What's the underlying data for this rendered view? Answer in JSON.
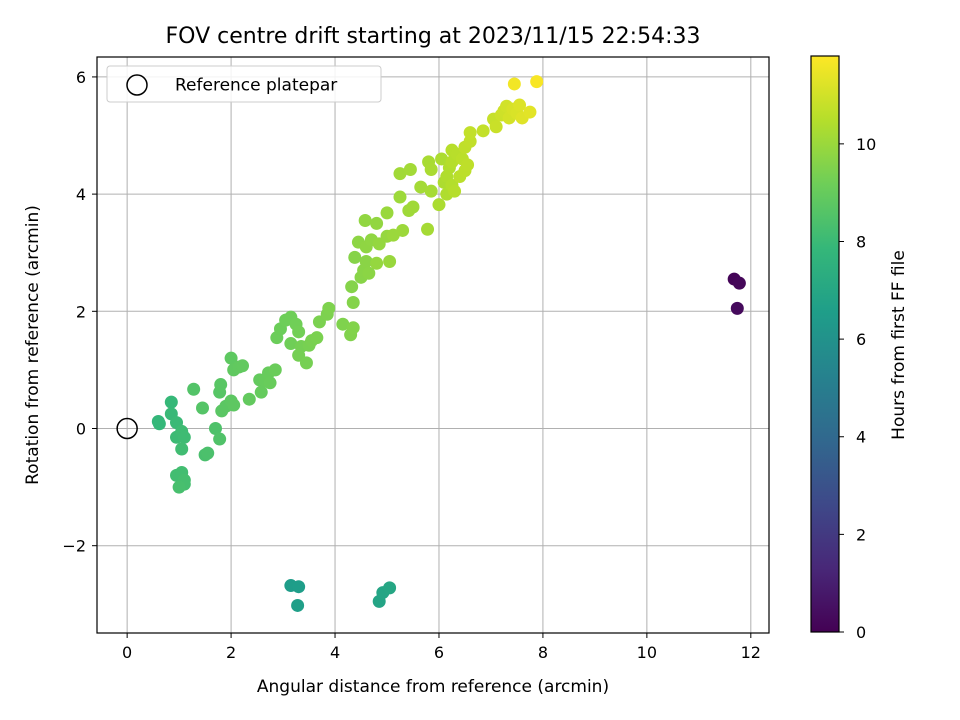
{
  "chart_data": {
    "type": "scatter",
    "title": "FOV centre drift starting at 2023/11/15 22:54:33",
    "xlabel": "Angular distance from reference (arcmin)",
    "ylabel": "Rotation from reference (arcmin)",
    "xlim": [
      -0.58,
      12.35
    ],
    "ylim": [
      -3.49,
      6.34
    ],
    "xticks": [
      0,
      2,
      4,
      6,
      8,
      10,
      12
    ],
    "yticks": [
      -2,
      0,
      2,
      4,
      6
    ],
    "ytick_labels": [
      "−2",
      "0",
      "2",
      "4",
      "6"
    ],
    "grid": true,
    "legend": {
      "position": "top-left",
      "label": "Reference platepar"
    },
    "reference_point": {
      "x": 0,
      "y": 0
    },
    "colorbar": {
      "label": "Hours from first FF file",
      "min": 0,
      "max": 11.8,
      "ticks": [
        0,
        2,
        4,
        6,
        8,
        10
      ],
      "colormap": "viridis",
      "stops": [
        "#440154",
        "#482878",
        "#3e4989",
        "#31688e",
        "#26828e",
        "#1f9e89",
        "#35b779",
        "#6ece58",
        "#b5de2b",
        "#fde725"
      ]
    },
    "points": [
      {
        "x": 11.68,
        "y": 2.55,
        "c": 0.1
      },
      {
        "x": 11.78,
        "y": 2.48,
        "c": 0.2
      },
      {
        "x": 11.74,
        "y": 2.05,
        "c": 0.3
      },
      {
        "x": 3.15,
        "y": -2.68,
        "c": 6.5
      },
      {
        "x": 3.3,
        "y": -2.7,
        "c": 6.55
      },
      {
        "x": 3.28,
        "y": -3.02,
        "c": 6.6
      },
      {
        "x": 4.85,
        "y": -2.95,
        "c": 6.85
      },
      {
        "x": 4.92,
        "y": -2.8,
        "c": 6.9
      },
      {
        "x": 5.05,
        "y": -2.72,
        "c": 6.95
      },
      {
        "x": 0.6,
        "y": 0.12,
        "c": 7.8
      },
      {
        "x": 0.62,
        "y": 0.08,
        "c": 7.85
      },
      {
        "x": 0.85,
        "y": 0.45,
        "c": 7.9
      },
      {
        "x": 0.85,
        "y": 0.25,
        "c": 7.95
      },
      {
        "x": 0.95,
        "y": 0.1,
        "c": 8.0
      },
      {
        "x": 0.95,
        "y": -0.15,
        "c": 8.05
      },
      {
        "x": 1.05,
        "y": -0.05,
        "c": 8.1
      },
      {
        "x": 1.1,
        "y": -0.15,
        "c": 8.1
      },
      {
        "x": 1.05,
        "y": -0.35,
        "c": 8.15
      },
      {
        "x": 0.95,
        "y": -0.8,
        "c": 8.2
      },
      {
        "x": 1.05,
        "y": -0.75,
        "c": 8.2
      },
      {
        "x": 1.1,
        "y": -0.88,
        "c": 8.25
      },
      {
        "x": 1.1,
        "y": -0.95,
        "c": 8.25
      },
      {
        "x": 1.0,
        "y": -1.0,
        "c": 8.3
      },
      {
        "x": 1.5,
        "y": -0.45,
        "c": 8.35
      },
      {
        "x": 1.55,
        "y": -0.42,
        "c": 8.4
      },
      {
        "x": 1.7,
        "y": 0.0,
        "c": 8.45
      },
      {
        "x": 1.78,
        "y": -0.18,
        "c": 8.5
      },
      {
        "x": 1.28,
        "y": 0.67,
        "c": 8.55
      },
      {
        "x": 1.45,
        "y": 0.35,
        "c": 8.6
      },
      {
        "x": 1.78,
        "y": 0.62,
        "c": 8.65
      },
      {
        "x": 1.8,
        "y": 0.75,
        "c": 8.7
      },
      {
        "x": 1.82,
        "y": 0.3,
        "c": 8.72
      },
      {
        "x": 1.9,
        "y": 0.38,
        "c": 8.75
      },
      {
        "x": 2.0,
        "y": 0.47,
        "c": 8.78
      },
      {
        "x": 2.05,
        "y": 0.4,
        "c": 8.8
      },
      {
        "x": 2.0,
        "y": 1.2,
        "c": 8.82
      },
      {
        "x": 2.05,
        "y": 1.0,
        "c": 8.85
      },
      {
        "x": 2.15,
        "y": 1.05,
        "c": 8.88
      },
      {
        "x": 2.22,
        "y": 1.07,
        "c": 8.9
      },
      {
        "x": 2.35,
        "y": 0.5,
        "c": 8.92
      },
      {
        "x": 2.55,
        "y": 0.83,
        "c": 8.95
      },
      {
        "x": 2.58,
        "y": 0.62,
        "c": 8.98
      },
      {
        "x": 2.65,
        "y": 0.82,
        "c": 9.0
      },
      {
        "x": 2.72,
        "y": 0.95,
        "c": 9.02
      },
      {
        "x": 2.75,
        "y": 0.78,
        "c": 9.05
      },
      {
        "x": 2.85,
        "y": 1.0,
        "c": 9.08
      },
      {
        "x": 2.88,
        "y": 1.55,
        "c": 9.1
      },
      {
        "x": 2.95,
        "y": 1.7,
        "c": 9.12
      },
      {
        "x": 3.05,
        "y": 1.85,
        "c": 9.15
      },
      {
        "x": 3.15,
        "y": 1.9,
        "c": 9.18
      },
      {
        "x": 3.15,
        "y": 1.45,
        "c": 9.2
      },
      {
        "x": 3.25,
        "y": 1.78,
        "c": 9.22
      },
      {
        "x": 3.3,
        "y": 1.65,
        "c": 9.25
      },
      {
        "x": 3.35,
        "y": 1.4,
        "c": 9.28
      },
      {
        "x": 3.3,
        "y": 1.25,
        "c": 9.3
      },
      {
        "x": 3.45,
        "y": 1.12,
        "c": 9.32
      },
      {
        "x": 3.5,
        "y": 1.42,
        "c": 9.35
      },
      {
        "x": 3.55,
        "y": 1.5,
        "c": 9.38
      },
      {
        "x": 3.65,
        "y": 1.55,
        "c": 9.4
      },
      {
        "x": 3.7,
        "y": 1.82,
        "c": 9.42
      },
      {
        "x": 3.85,
        "y": 1.95,
        "c": 9.45
      },
      {
        "x": 3.88,
        "y": 2.05,
        "c": 9.48
      },
      {
        "x": 4.15,
        "y": 1.78,
        "c": 9.5
      },
      {
        "x": 4.3,
        "y": 1.6,
        "c": 9.52
      },
      {
        "x": 4.35,
        "y": 1.72,
        "c": 9.55
      },
      {
        "x": 4.35,
        "y": 2.15,
        "c": 9.58
      },
      {
        "x": 4.32,
        "y": 2.42,
        "c": 9.6
      },
      {
        "x": 4.38,
        "y": 2.92,
        "c": 9.62
      },
      {
        "x": 4.5,
        "y": 2.58,
        "c": 9.65
      },
      {
        "x": 4.55,
        "y": 2.7,
        "c": 9.68
      },
      {
        "x": 4.6,
        "y": 2.85,
        "c": 9.7
      },
      {
        "x": 4.65,
        "y": 2.65,
        "c": 9.72
      },
      {
        "x": 4.45,
        "y": 3.18,
        "c": 9.75
      },
      {
        "x": 4.6,
        "y": 3.1,
        "c": 9.78
      },
      {
        "x": 4.7,
        "y": 3.22,
        "c": 9.8
      },
      {
        "x": 4.58,
        "y": 3.55,
        "c": 9.82
      },
      {
        "x": 4.8,
        "y": 3.5,
        "c": 9.85
      },
      {
        "x": 4.85,
        "y": 3.15,
        "c": 9.88
      },
      {
        "x": 4.8,
        "y": 2.82,
        "c": 9.9
      },
      {
        "x": 5.0,
        "y": 3.28,
        "c": 9.92
      },
      {
        "x": 5.05,
        "y": 2.85,
        "c": 9.95
      },
      {
        "x": 5.0,
        "y": 3.68,
        "c": 9.98
      },
      {
        "x": 5.12,
        "y": 3.3,
        "c": 10.0
      },
      {
        "x": 5.3,
        "y": 3.38,
        "c": 10.02
      },
      {
        "x": 5.25,
        "y": 3.95,
        "c": 10.05
      },
      {
        "x": 5.42,
        "y": 3.72,
        "c": 10.08
      },
      {
        "x": 5.5,
        "y": 3.78,
        "c": 10.1
      },
      {
        "x": 5.25,
        "y": 4.35,
        "c": 10.12
      },
      {
        "x": 5.45,
        "y": 4.42,
        "c": 10.15
      },
      {
        "x": 5.65,
        "y": 4.12,
        "c": 10.18
      },
      {
        "x": 5.78,
        "y": 3.4,
        "c": 10.2
      },
      {
        "x": 5.85,
        "y": 4.05,
        "c": 10.22
      },
      {
        "x": 5.8,
        "y": 4.55,
        "c": 10.25
      },
      {
        "x": 5.85,
        "y": 4.42,
        "c": 10.28
      },
      {
        "x": 6.0,
        "y": 3.82,
        "c": 10.3
      },
      {
        "x": 6.05,
        "y": 4.6,
        "c": 10.32
      },
      {
        "x": 6.1,
        "y": 4.2,
        "c": 10.35
      },
      {
        "x": 6.15,
        "y": 4.0,
        "c": 10.38
      },
      {
        "x": 6.15,
        "y": 4.3,
        "c": 10.4
      },
      {
        "x": 6.2,
        "y": 4.45,
        "c": 10.42
      },
      {
        "x": 6.25,
        "y": 4.15,
        "c": 10.45
      },
      {
        "x": 6.25,
        "y": 4.55,
        "c": 10.48
      },
      {
        "x": 6.3,
        "y": 4.05,
        "c": 10.5
      },
      {
        "x": 6.25,
        "y": 4.75,
        "c": 10.52
      },
      {
        "x": 6.35,
        "y": 4.68,
        "c": 10.55
      },
      {
        "x": 6.4,
        "y": 4.3,
        "c": 10.58
      },
      {
        "x": 6.45,
        "y": 4.6,
        "c": 10.6
      },
      {
        "x": 6.5,
        "y": 4.4,
        "c": 10.62
      },
      {
        "x": 6.55,
        "y": 4.5,
        "c": 10.65
      },
      {
        "x": 6.5,
        "y": 4.8,
        "c": 10.68
      },
      {
        "x": 6.6,
        "y": 4.9,
        "c": 10.7
      },
      {
        "x": 6.6,
        "y": 5.05,
        "c": 10.72
      },
      {
        "x": 6.85,
        "y": 5.08,
        "c": 10.75
      },
      {
        "x": 7.05,
        "y": 5.28,
        "c": 10.8
      },
      {
        "x": 7.1,
        "y": 5.15,
        "c": 10.85
      },
      {
        "x": 7.2,
        "y": 5.35,
        "c": 10.9
      },
      {
        "x": 7.25,
        "y": 5.42,
        "c": 10.95
      },
      {
        "x": 7.3,
        "y": 5.5,
        "c": 11.0
      },
      {
        "x": 7.35,
        "y": 5.3,
        "c": 11.05
      },
      {
        "x": 7.42,
        "y": 5.45,
        "c": 11.1
      },
      {
        "x": 7.5,
        "y": 5.38,
        "c": 11.15
      },
      {
        "x": 7.55,
        "y": 5.52,
        "c": 11.2
      },
      {
        "x": 7.6,
        "y": 5.3,
        "c": 11.25
      },
      {
        "x": 7.75,
        "y": 5.4,
        "c": 11.3
      },
      {
        "x": 7.45,
        "y": 5.88,
        "c": 11.6
      },
      {
        "x": 7.88,
        "y": 5.92,
        "c": 11.7
      }
    ]
  }
}
